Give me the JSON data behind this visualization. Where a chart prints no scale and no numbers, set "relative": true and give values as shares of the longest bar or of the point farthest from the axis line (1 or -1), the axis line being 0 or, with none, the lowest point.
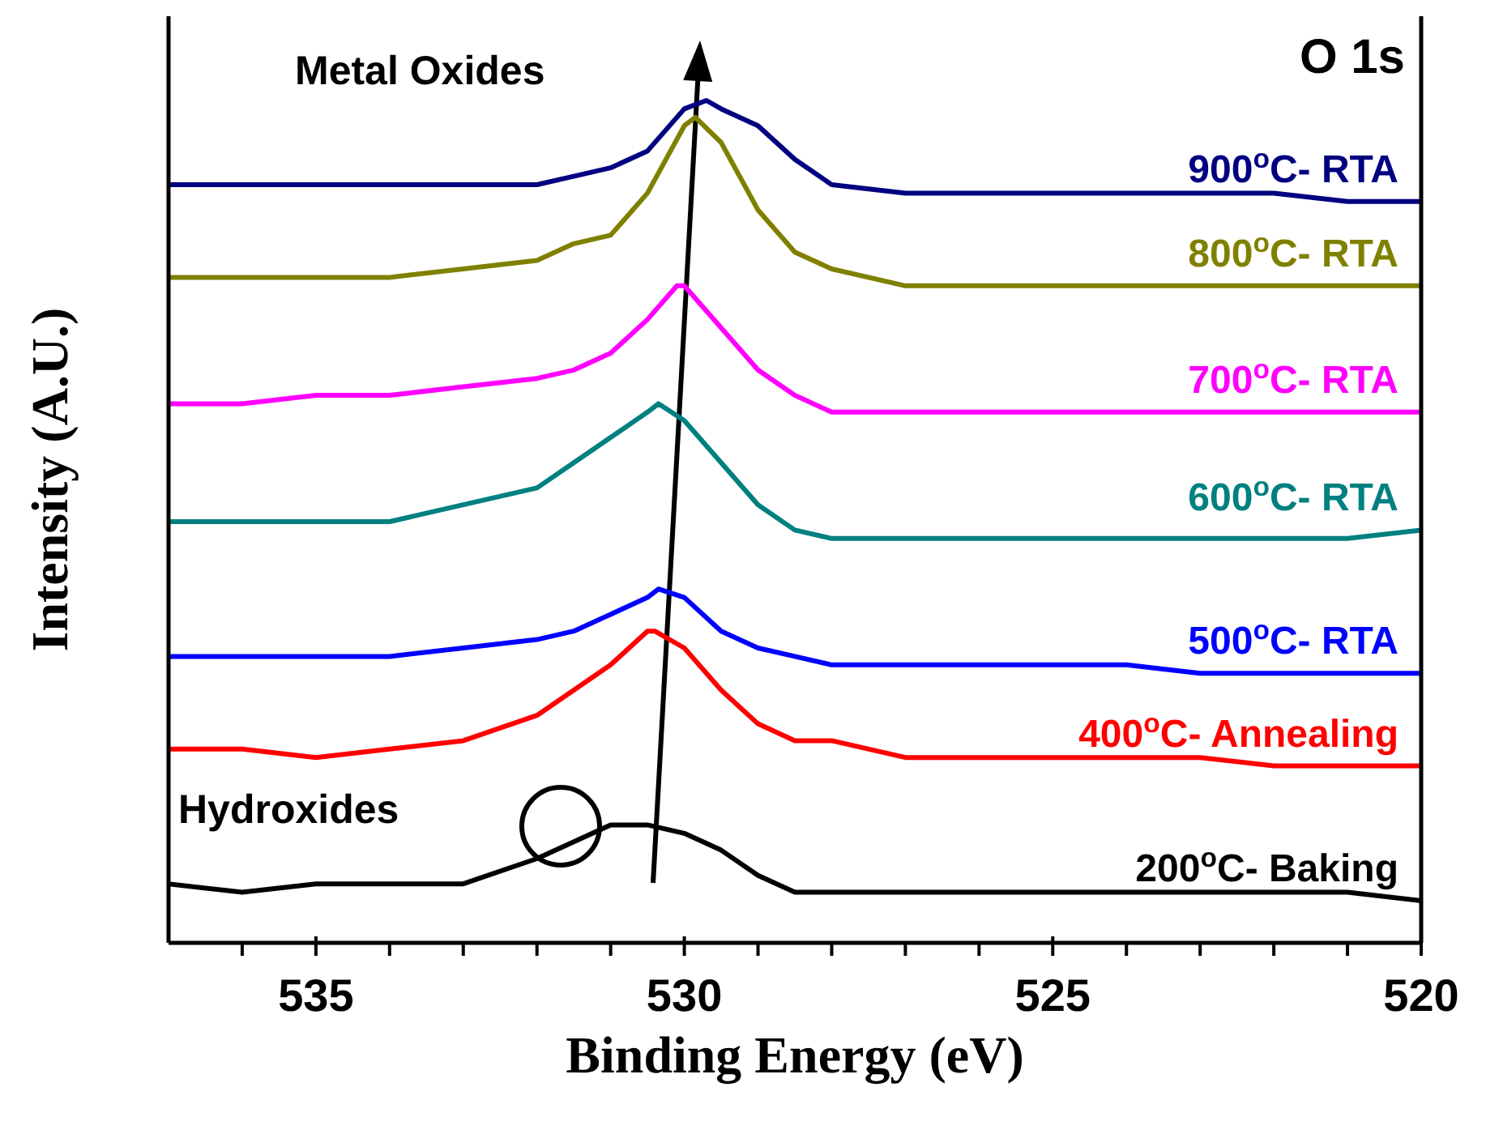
{
  "chart_data": {
    "type": "line",
    "relative": true,
    "xlabel": "Binding Energy (eV)",
    "ylabel": "Intensity (A.U.)",
    "xlim": [
      537,
      520
    ],
    "xticks": [
      {
        "value": 536,
        "label": null
      },
      535,
      {
        "value": 534,
        "label": null
      },
      {
        "value": 533,
        "label": null
      },
      {
        "value": 532,
        "label": null
      },
      {
        "value": 531,
        "label": null
      },
      530,
      {
        "value": 529,
        "label": null
      },
      {
        "value": 528,
        "label": null
      },
      {
        "value": 527,
        "label": null
      },
      {
        "value": 526,
        "label": null
      },
      525,
      {
        "value": 524,
        "label": null
      },
      {
        "value": 523,
        "label": null
      },
      {
        "value": 522,
        "label": null
      },
      {
        "value": 521,
        "label": null
      },
      520
    ],
    "annotations": [
      "O 1s",
      "Metal Oxides",
      "Hydroxides"
    ],
    "marker": "none",
    "line_style": "solid",
    "series": [
      {
        "name": "900$^{o}$C- RTA",
        "color": "#000080",
        "x": [
          537,
          536,
          535,
          534,
          533,
          532,
          531.5,
          531,
          530.5,
          530,
          529.7,
          529.5,
          529,
          528.5,
          528,
          527,
          526,
          525,
          524,
          523,
          522,
          521,
          520
        ],
        "values": [
          0.9,
          0.9,
          0.9,
          0.9,
          0.9,
          0.9,
          0.91,
          0.92,
          0.94,
          0.99,
          1.0,
          0.99,
          0.97,
          0.93,
          0.9,
          0.89,
          0.89,
          0.89,
          0.89,
          0.89,
          0.89,
          0.88,
          0.88
        ]
      },
      {
        "name": "800$^{o}$C- RTA",
        "color": "#808000",
        "x": [
          537,
          536,
          535,
          534,
          533,
          532,
          531.5,
          531,
          530.5,
          530,
          529.85,
          529.5,
          529,
          528.5,
          528,
          527,
          526,
          525,
          524,
          523,
          522,
          521,
          520
        ],
        "values": [
          0.79,
          0.79,
          0.79,
          0.79,
          0.8,
          0.81,
          0.83,
          0.84,
          0.89,
          0.97,
          0.98,
          0.95,
          0.87,
          0.82,
          0.8,
          0.78,
          0.78,
          0.78,
          0.78,
          0.78,
          0.78,
          0.78,
          0.78
        ]
      },
      {
        "name": "700$^{o}$C- RTA",
        "color": "#ff00ff",
        "x": [
          537,
          536,
          535,
          534,
          533,
          532,
          531.5,
          531,
          530.5,
          530.1,
          530,
          529.5,
          529,
          528.5,
          528,
          527,
          526,
          525,
          524,
          523,
          522,
          521,
          520
        ],
        "values": [
          0.64,
          0.64,
          0.65,
          0.65,
          0.66,
          0.67,
          0.68,
          0.7,
          0.74,
          0.78,
          0.78,
          0.73,
          0.68,
          0.65,
          0.63,
          0.63,
          0.63,
          0.63,
          0.63,
          0.63,
          0.63,
          0.63,
          0.63
        ]
      },
      {
        "name": "600$^{o}$C- RTA",
        "color": "#008080",
        "x": [
          537,
          536,
          535,
          534,
          533,
          532,
          531.5,
          531,
          530.5,
          530.35,
          530,
          529.5,
          529,
          528.5,
          528,
          527,
          526,
          525,
          524,
          523,
          522,
          521,
          520
        ],
        "values": [
          0.5,
          0.5,
          0.5,
          0.5,
          0.52,
          0.54,
          0.57,
          0.6,
          0.63,
          0.64,
          0.62,
          0.57,
          0.52,
          0.49,
          0.48,
          0.48,
          0.48,
          0.48,
          0.48,
          0.48,
          0.48,
          0.48,
          0.49
        ]
      },
      {
        "name": "500$^{o}$C- RTA",
        "color": "#0000ff",
        "x": [
          537,
          536,
          535,
          534,
          533,
          532,
          531.5,
          531,
          530.5,
          530.35,
          530,
          529.5,
          529,
          528.5,
          528,
          527,
          526,
          525,
          524,
          523,
          522,
          521,
          520
        ],
        "values": [
          0.34,
          0.34,
          0.34,
          0.34,
          0.35,
          0.36,
          0.37,
          0.39,
          0.41,
          0.42,
          0.41,
          0.37,
          0.35,
          0.34,
          0.33,
          0.33,
          0.33,
          0.33,
          0.33,
          0.32,
          0.32,
          0.32,
          0.32
        ]
      },
      {
        "name": "400$^{o}$C- Annealing",
        "color": "#ff0000",
        "x": [
          537,
          536,
          535,
          534,
          533,
          532,
          531.5,
          531,
          530.5,
          530.4,
          530,
          529.5,
          529,
          528.5,
          528,
          527,
          526,
          525,
          524,
          523,
          522,
          521,
          520
        ],
        "values": [
          0.23,
          0.23,
          0.22,
          0.23,
          0.24,
          0.27,
          0.3,
          0.33,
          0.37,
          0.37,
          0.35,
          0.3,
          0.26,
          0.24,
          0.24,
          0.22,
          0.22,
          0.22,
          0.22,
          0.22,
          0.21,
          0.21,
          0.21
        ]
      },
      {
        "name": "200$^{o}$C- Baking",
        "color": "#000000",
        "x": [
          537,
          536,
          535,
          534,
          533,
          532,
          531.5,
          531,
          530.5,
          530,
          529.5,
          529,
          528.5,
          528,
          527,
          526,
          525,
          524,
          523,
          522,
          521,
          520
        ],
        "values": [
          0.07,
          0.06,
          0.07,
          0.07,
          0.07,
          0.1,
          0.12,
          0.14,
          0.14,
          0.13,
          0.11,
          0.08,
          0.06,
          0.06,
          0.06,
          0.06,
          0.06,
          0.06,
          0.06,
          0.06,
          0.06,
          0.05
        ]
      }
    ]
  }
}
